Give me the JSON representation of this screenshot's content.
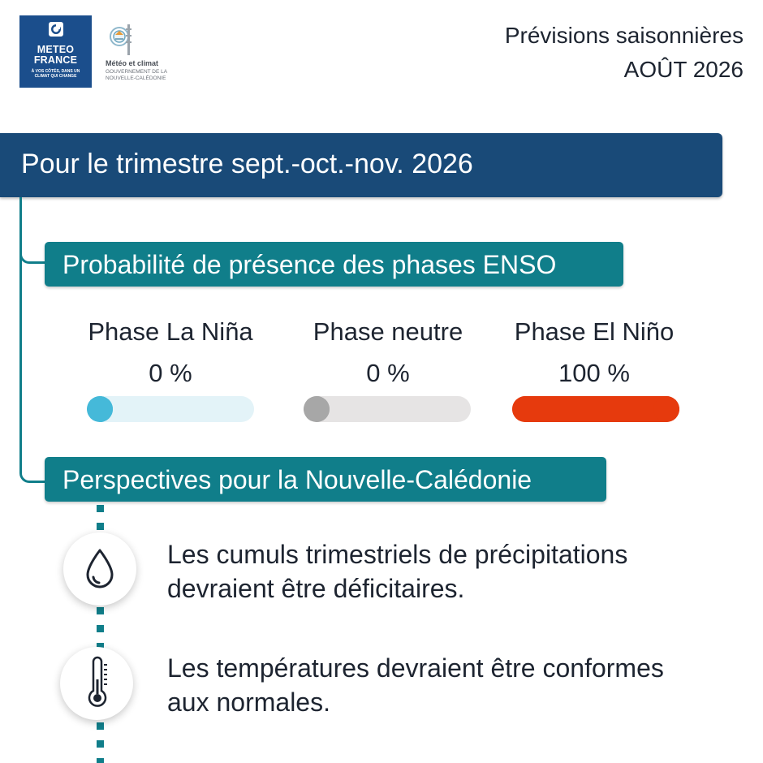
{
  "header": {
    "logo_mf": {
      "word1": "METEO",
      "word2": "FRANCE",
      "tagline1": "À VOS CÔTÉS, DANS UN",
      "tagline2": "CLIMAT QUI CHANGE",
      "brand_color": "#1b4e8c",
      "icon": "meteo-france-emblem-icon"
    },
    "logo_nc": {
      "name": "Météo et climat",
      "sub1": "GOUVERNEMENT DE LA",
      "sub2": "NOUVELLE-CALÉDONIE",
      "icon": "nc-government-emblem-icon"
    },
    "title": "Prévisions saisonnières",
    "date": "AOÛT 2026"
  },
  "banner": {
    "text": "Pour le trimestre sept.-oct.-nov. 2026",
    "color": "#194a78"
  },
  "enso": {
    "section_title": "Probabilité de présence des phases ENSO",
    "section_color": "#107e8a",
    "phases": [
      {
        "label": "Phase La Niña",
        "value_text": "0 %",
        "probability": 0,
        "knob_color": "#45b9d9",
        "track_color": "#e3f3f8"
      },
      {
        "label": "Phase neutre",
        "value_text": "0 %",
        "probability": 0,
        "knob_color": "#a7a7a7",
        "track_color": "#e6e4e4"
      },
      {
        "label": "Phase El Niño",
        "value_text": "100 %",
        "probability": 100,
        "knob_color": "#e63a0d",
        "track_color": "#e63a0d"
      }
    ]
  },
  "outlook": {
    "section_title": "Perspectives pour la Nouvelle-Calédonie",
    "items": [
      {
        "icon": "rain-drop-icon",
        "line1": "Les cumuls trimestriels de précipitations",
        "line2": "devraient être déficitaires."
      },
      {
        "icon": "thermometer-icon",
        "line1": "Les températures devraient être conformes",
        "line2": "aux normales."
      }
    ]
  }
}
